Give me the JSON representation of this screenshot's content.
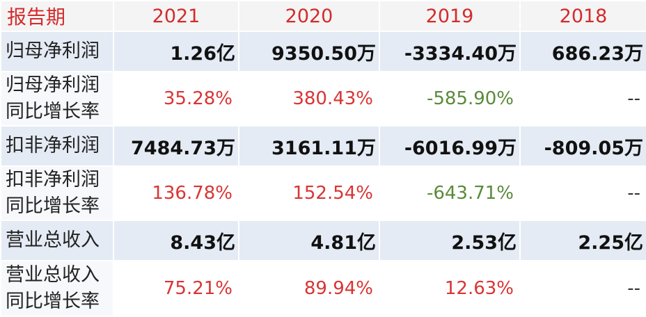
{
  "header": {
    "label": "报告期",
    "years": [
      "2021",
      "2020",
      "2019",
      "2018"
    ]
  },
  "rows": [
    {
      "label_lines": [
        "归母净利润"
      ],
      "values": [
        "1.26亿",
        "9350.50万",
        "-3334.40万",
        "686.23万"
      ]
    },
    {
      "label_lines": [
        "归母净利润",
        "同比增长率"
      ],
      "values": [
        "35.28%",
        "380.43%",
        "-585.90%",
        "--"
      ]
    },
    {
      "label_lines": [
        "扣非净利润"
      ],
      "values": [
        "7484.73万",
        "3161.11万",
        "-6016.99万",
        "-809.05万"
      ]
    },
    {
      "label_lines": [
        "扣非净利润",
        "同比增长率"
      ],
      "values": [
        "136.78%",
        "152.54%",
        "-643.71%",
        "--"
      ]
    },
    {
      "label_lines": [
        "营业总收入"
      ],
      "values": [
        "8.43亿",
        "4.81亿",
        "2.53亿",
        "2.25亿"
      ]
    },
    {
      "label_lines": [
        "营业总收入",
        "同比增长率"
      ],
      "values": [
        "75.21%",
        "89.94%",
        "12.63%",
        "--"
      ]
    }
  ],
  "colors": {
    "header_text": "#d42b2b",
    "growth_positive": "#d93434",
    "growth_negative": "#5a8a3a",
    "value_row_background": "#e4ebf4"
  }
}
